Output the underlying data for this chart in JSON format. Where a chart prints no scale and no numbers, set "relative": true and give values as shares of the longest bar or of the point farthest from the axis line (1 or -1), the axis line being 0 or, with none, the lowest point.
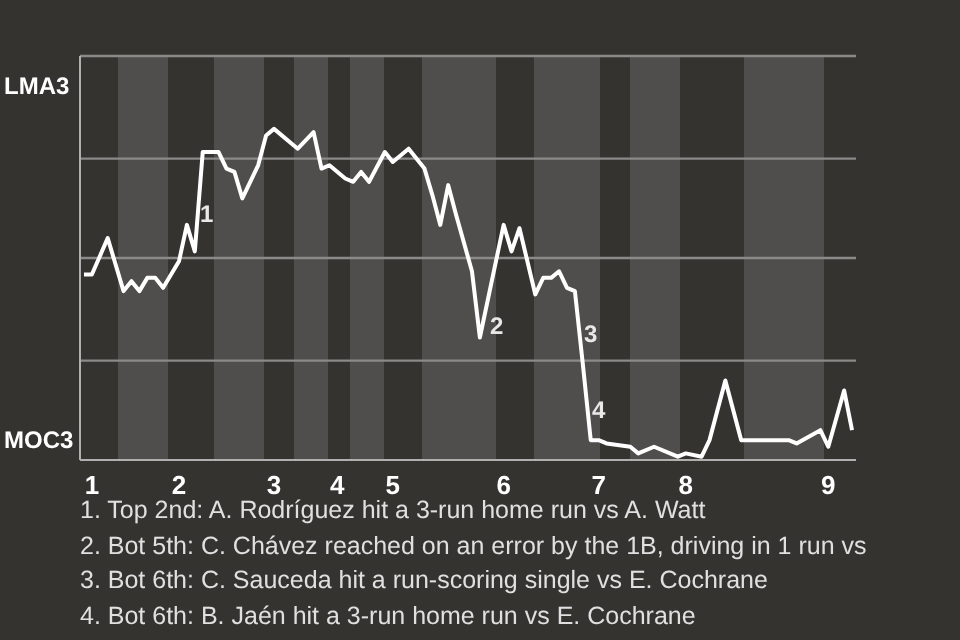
{
  "chart_data": {
    "type": "line",
    "relative": true,
    "categories": [
      null,
      "1",
      null,
      null,
      null,
      null,
      null,
      null,
      null,
      null,
      null,
      null,
      "2",
      null,
      null,
      null,
      null,
      null,
      null,
      null,
      null,
      null,
      null,
      null,
      "3",
      null,
      null,
      null,
      null,
      null,
      null,
      null,
      "4",
      null,
      null,
      null,
      null,
      null,
      null,
      "5",
      null,
      null,
      null,
      null,
      null,
      null,
      null,
      null,
      null,
      null,
      null,
      null,
      null,
      "6",
      null,
      null,
      null,
      null,
      null,
      null,
      null,
      null,
      null,
      null,
      null,
      "7",
      null,
      null,
      null,
      null,
      null,
      null,
      null,
      null,
      null,
      null,
      "8",
      null,
      null,
      null,
      null,
      null,
      null,
      null,
      null,
      null,
      null,
      null,
      null,
      null,
      null,
      null,
      null,
      null,
      "9",
      null,
      null,
      null
    ],
    "series": [
      {
        "color": "#ffffff",
        "values": [
          0.56,
          0.56,
          null,
          0.67,
          null,
          0.51,
          0.54,
          0.51,
          0.55,
          0.55,
          0.52,
          null,
          0.6,
          0.71,
          0.63,
          0.93,
          null,
          0.93,
          0.88,
          0.87,
          0.79,
          null,
          0.89,
          0.98,
          1,
          null,
          null,
          0.94,
          null,
          0.99,
          0.88,
          0.89,
          null,
          0.85,
          0.84,
          0.87,
          0.84,
          null,
          0.93,
          0.9,
          null,
          0.94,
          null,
          0.88,
          0.8,
          0.71,
          0.83,
          0.74,
          null,
          0.57,
          0.37,
          null,
          null,
          0.71,
          0.63,
          0.7,
          null,
          0.5,
          0.55,
          0.55,
          0.57,
          0.52,
          0.51,
          0.29,
          0.06,
          0.06,
          0.05,
          null,
          null,
          0.04,
          0.02,
          null,
          0.04,
          null,
          null,
          0.01,
          0.02,
          null,
          0.01,
          0.06,
          null,
          0.24,
          null,
          0.06,
          null,
          null,
          null,
          null,
          null,
          0.06,
          0.05,
          null,
          null,
          0.09,
          0.04,
          null,
          0.21,
          0.09
        ]
      }
    ],
    "marker": "none",
    "ref_lines": [
      {
        "axis": "y",
        "value": 0.3,
        "color": "#8a8a88"
      },
      {
        "axis": "y",
        "value": 0.61,
        "color": "#8a8a88"
      },
      {
        "axis": "y",
        "value": 0.91,
        "color": "#8a8a88"
      },
      {
        "axis": "y",
        "value": 1.22,
        "color": "#8a8a88"
      }
    ],
    "annotations": [
      "LMA3",
      "MOC3",
      "1",
      "2",
      "3",
      "4",
      "1. Top 2nd: A. Rodríguez hit a 3-run home run vs A. Watt",
      "2. Bot 5th: C. Chávez reached on an error by the 1B, driving in 1 run vs",
      "3. Bot 6th: C. Sauceda hit a run-scoring single vs E. Cochrane",
      "4. Bot 6th: B. Jaén hit a 3-run home run vs E. Cochrane"
    ]
  }
}
